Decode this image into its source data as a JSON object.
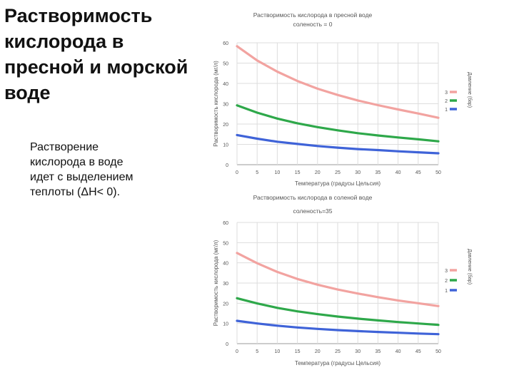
{
  "slide": {
    "title": "Растворимость\nкислорода в\nпресной и морской\nводе",
    "body": "Растворение\nкислорода в воде\nидет с выделением\nтеплоты (ΔH< 0)."
  },
  "chart_data": [
    {
      "type": "line",
      "title": "Растворимость кислорода в пресной воде",
      "subtitle": "соленость = 0",
      "xlabel": "Температура (градусы Цельсия)",
      "ylabel": "Растворимость кислорода (мг/л)",
      "legend_title": "Давление (бар)",
      "legend_position": "right",
      "x": [
        0,
        5,
        10,
        15,
        20,
        25,
        30,
        35,
        40,
        45,
        50
      ],
      "xlim": [
        0,
        50
      ],
      "ylim": [
        0,
        60
      ],
      "xticks": [
        0,
        5,
        10,
        15,
        20,
        25,
        30,
        35,
        40,
        45,
        50
      ],
      "yticks": [
        0,
        10,
        20,
        30,
        40,
        50,
        60
      ],
      "grid": true,
      "series": [
        {
          "name": "3",
          "color": "#f2a3a0",
          "values": [
            58.3,
            51.3,
            45.8,
            41.2,
            37.4,
            34.3,
            31.6,
            29.3,
            27.2,
            25.2,
            23.1
          ]
        },
        {
          "name": "2",
          "color": "#2ea84a",
          "values": [
            29.2,
            25.6,
            22.7,
            20.4,
            18.5,
            16.9,
            15.5,
            14.4,
            13.4,
            12.5,
            11.5
          ]
        },
        {
          "name": "1",
          "color": "#3f63d8",
          "values": [
            14.6,
            12.8,
            11.3,
            10.2,
            9.2,
            8.4,
            7.7,
            7.2,
            6.6,
            6.1,
            5.6
          ]
        }
      ]
    },
    {
      "type": "line",
      "title": "Растворимость кислорода в соленой воде",
      "subtitle": "соленость=35",
      "xlabel": "Температура (градусы Цельсия)",
      "ylabel": "Растворимость кислорода (мг/л)",
      "legend_title": "Давление (бар)",
      "legend_position": "right",
      "x": [
        0,
        5,
        10,
        15,
        20,
        25,
        30,
        35,
        40,
        45,
        50
      ],
      "xlim": [
        0,
        50
      ],
      "ylim": [
        0,
        60
      ],
      "xticks": [
        0,
        5,
        10,
        15,
        20,
        25,
        30,
        35,
        40,
        45,
        50
      ],
      "yticks": [
        0,
        10,
        20,
        30,
        40,
        50,
        60
      ],
      "grid": true,
      "series": [
        {
          "name": "3",
          "color": "#f2a3a0",
          "values": [
            44.9,
            39.8,
            35.5,
            32.0,
            29.2,
            26.8,
            24.8,
            23.0,
            21.4,
            20.0,
            18.6
          ]
        },
        {
          "name": "2",
          "color": "#2ea84a",
          "values": [
            22.5,
            19.9,
            17.7,
            16.0,
            14.6,
            13.4,
            12.4,
            11.5,
            10.7,
            10.0,
            9.3
          ]
        },
        {
          "name": "1",
          "color": "#3f63d8",
          "values": [
            11.3,
            10.0,
            8.9,
            8.0,
            7.3,
            6.7,
            6.2,
            5.8,
            5.4,
            5.0,
            4.7
          ]
        }
      ]
    }
  ]
}
